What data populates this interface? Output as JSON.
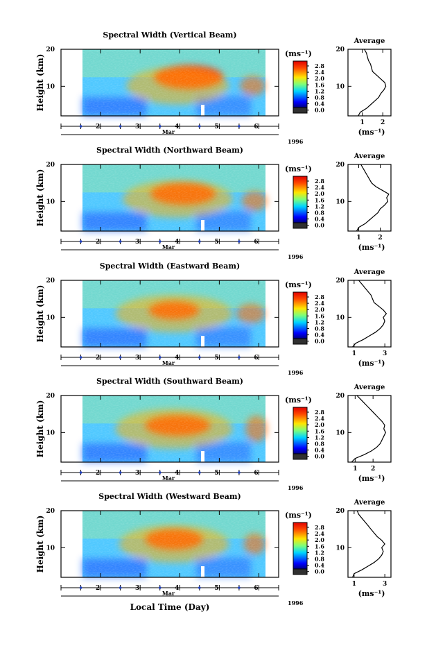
{
  "figure": {
    "xlabel": "Local Time (Day)",
    "month_label": "Mar",
    "year_label": "1996"
  },
  "chart_data": [
    {
      "type": "heatmap",
      "title": "Spectral Width (Vertical Beam)",
      "ylabel": "Height (km)",
      "yticks": [
        "20",
        "10"
      ],
      "xticks": [
        "2",
        "3",
        "4",
        "5",
        "6"
      ],
      "xlim": [
        1,
        6.5
      ],
      "ylim": [
        2,
        20
      ],
      "colorbar": {
        "unit": "(ms⁻¹)",
        "ticks": [
          "2.8",
          "2.4",
          "2.0",
          "1.6",
          "1.2",
          "0.8",
          "0.4",
          "0.0"
        ]
      },
      "average": {
        "title": "Average",
        "xlabel": "(ms⁻¹)",
        "xticks": [
          "1",
          "2"
        ],
        "xlim": [
          0.3,
          2.4
        ],
        "yticks": [
          "20",
          "10"
        ],
        "height": [
          2,
          3,
          4,
          5,
          6,
          7,
          8,
          9,
          10,
          11,
          12,
          13,
          14,
          15,
          16,
          17,
          18,
          19,
          20
        ],
        "values": [
          0.8,
          0.9,
          1.2,
          1.4,
          1.6,
          1.8,
          1.9,
          2.05,
          2.15,
          2.1,
          1.9,
          1.7,
          1.5,
          1.45,
          1.4,
          1.3,
          1.25,
          1.2,
          1.1
        ]
      }
    },
    {
      "type": "heatmap",
      "title": "Spectral Width (Northward Beam)",
      "ylabel": "Height (km)",
      "yticks": [
        "20",
        "10"
      ],
      "xticks": [
        "2",
        "3",
        "4",
        "5",
        "6"
      ],
      "xlim": [
        1,
        6.5
      ],
      "ylim": [
        2,
        20
      ],
      "colorbar": {
        "unit": "(ms⁻¹)",
        "ticks": [
          "2.8",
          "2.4",
          "2.0",
          "1.6",
          "1.2",
          "0.8",
          "0.4",
          "0.0"
        ]
      },
      "average": {
        "title": "Average",
        "xlabel": "(ms⁻¹)",
        "xticks": [
          "1",
          "2"
        ],
        "xlim": [
          0.5,
          2.5
        ],
        "yticks": [
          "20",
          "10"
        ],
        "height": [
          2,
          3,
          4,
          5,
          6,
          7,
          8,
          9,
          10,
          11,
          12,
          13,
          14,
          15,
          16,
          17,
          18,
          19,
          20
        ],
        "values": [
          0.9,
          1.0,
          1.3,
          1.5,
          1.7,
          1.9,
          2.0,
          2.2,
          2.35,
          2.3,
          2.4,
          2.1,
          1.8,
          1.6,
          1.5,
          1.4,
          1.3,
          1.2,
          1.1
        ]
      }
    },
    {
      "type": "heatmap",
      "title": "Spectral Width (Eastward Beam)",
      "ylabel": "Height (km)",
      "yticks": [
        "20",
        "10"
      ],
      "xticks": [
        "2",
        "3",
        "4",
        "5",
        "6"
      ],
      "xlim": [
        1,
        6.5
      ],
      "ylim": [
        2,
        20
      ],
      "colorbar": {
        "unit": "(ms⁻¹)",
        "ticks": [
          "2.8",
          "2.4",
          "2.0",
          "1.6",
          "1.2",
          "0.8",
          "0.4",
          "0.0"
        ]
      },
      "average": {
        "title": "Average",
        "xlabel": "(ms⁻¹)",
        "xticks": [
          "1",
          "3"
        ],
        "xlim": [
          0.6,
          3.4
        ],
        "yticks": [
          "20",
          "10"
        ],
        "height": [
          2,
          3,
          4,
          5,
          6,
          7,
          8,
          9,
          10,
          11,
          12,
          13,
          14,
          15,
          16,
          17,
          18,
          19,
          20
        ],
        "values": [
          0.9,
          1.1,
          1.6,
          2.0,
          2.4,
          2.7,
          2.9,
          3.0,
          2.9,
          3.1,
          2.9,
          2.6,
          2.3,
          2.2,
          2.1,
          1.9,
          1.7,
          1.5,
          1.3
        ]
      }
    },
    {
      "type": "heatmap",
      "title": "Spectral Width (Southward Beam)",
      "ylabel": "Height (km)",
      "yticks": [
        "20",
        "10"
      ],
      "xticks": [
        "2",
        "3",
        "4",
        "5",
        "6"
      ],
      "xlim": [
        1,
        6.5
      ],
      "ylim": [
        2,
        20
      ],
      "colorbar": {
        "unit": "(ms⁻¹)",
        "ticks": [
          "2.8",
          "2.4",
          "2.0",
          "1.6",
          "1.2",
          "0.8",
          "0.4",
          "0.0"
        ]
      },
      "average": {
        "title": "Average",
        "xlabel": "(ms⁻¹)",
        "xticks": [
          "1",
          "2"
        ],
        "xlim": [
          0.6,
          3.0
        ],
        "yticks": [
          "20",
          "10"
        ],
        "height": [
          2,
          3,
          4,
          5,
          6,
          7,
          8,
          9,
          10,
          11,
          12,
          13,
          14,
          15,
          16,
          17,
          18,
          19,
          20
        ],
        "values": [
          0.8,
          1.0,
          1.5,
          1.9,
          2.2,
          2.4,
          2.5,
          2.6,
          2.7,
          2.6,
          2.65,
          2.5,
          2.3,
          2.1,
          1.9,
          1.7,
          1.5,
          1.3,
          1.1
        ]
      }
    },
    {
      "type": "heatmap",
      "title": "Spectral Width (Westward Beam)",
      "ylabel": "Height (km)",
      "yticks": [
        "20",
        "10"
      ],
      "xticks": [
        "2",
        "3",
        "4",
        "5",
        "6"
      ],
      "xlim": [
        1,
        6.5
      ],
      "ylim": [
        2,
        20
      ],
      "colorbar": {
        "unit": "(ms⁻¹)",
        "ticks": [
          "2.8",
          "2.4",
          "2.0",
          "1.6",
          "1.2",
          "0.8",
          "0.4",
          "0.0"
        ]
      },
      "average": {
        "title": "Average",
        "xlabel": "(ms⁻¹)",
        "xticks": [
          "1",
          "3"
        ],
        "xlim": [
          0.6,
          3.4
        ],
        "yticks": [
          "20",
          "10"
        ],
        "height": [
          2,
          3,
          4,
          5,
          6,
          7,
          8,
          9,
          10,
          11,
          12,
          13,
          14,
          15,
          16,
          17,
          18,
          19,
          20
        ],
        "values": [
          0.9,
          1.0,
          1.5,
          1.9,
          2.3,
          2.6,
          2.8,
          2.9,
          2.8,
          3.0,
          2.8,
          2.5,
          2.3,
          2.1,
          1.9,
          1.7,
          1.5,
          1.3,
          1.2
        ]
      }
    }
  ]
}
